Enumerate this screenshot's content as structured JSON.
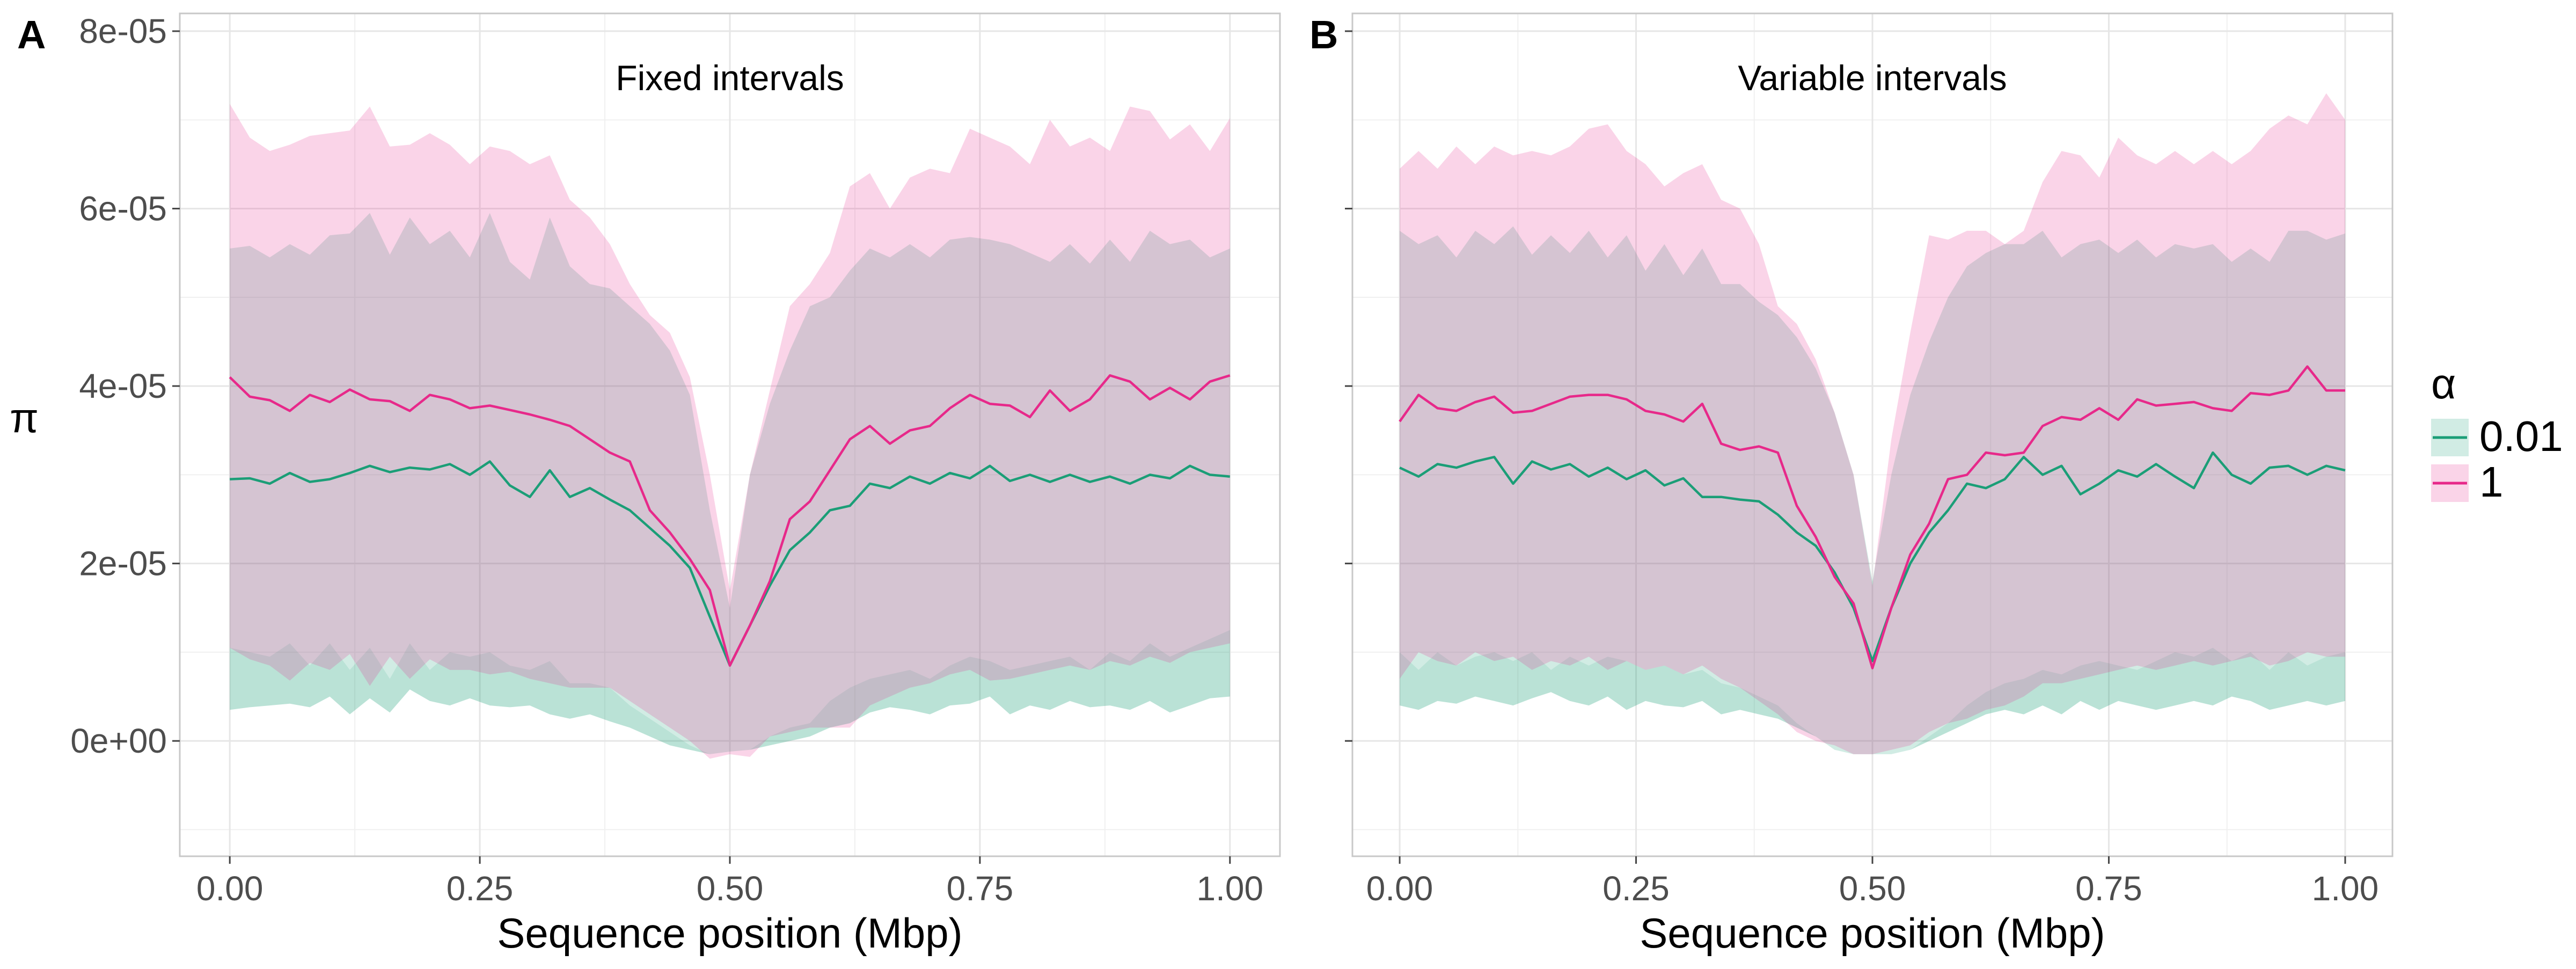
{
  "figure": {
    "ylabel": "π",
    "legend": {
      "title": "α",
      "position": "right",
      "entries": [
        {
          "label": "0.01",
          "line_color": "#1b9e77",
          "fill_color": "#1b9e77"
        },
        {
          "label": "1",
          "line_color": "#e7298a",
          "fill_color": "#e7298a"
        }
      ]
    },
    "y_ticks": [
      {
        "value": 8e-05,
        "label": "8e-05"
      },
      {
        "value": 6e-05,
        "label": "6e-05"
      },
      {
        "value": 4e-05,
        "label": "4e-05"
      },
      {
        "value": 2e-05,
        "label": "2e-05"
      },
      {
        "value": 0.0,
        "label": "0e+00"
      }
    ],
    "x_ticks": [
      {
        "value": 0.0,
        "label": "0.00"
      },
      {
        "value": 0.25,
        "label": "0.25"
      },
      {
        "value": 0.5,
        "label": "0.50"
      },
      {
        "value": 0.75,
        "label": "0.75"
      },
      {
        "value": 1.0,
        "label": "1.00"
      }
    ],
    "grid": true,
    "ribbon_opacity": 0.2
  },
  "chart_data": [
    {
      "type": "area",
      "panel_tag": "A",
      "title": "Fixed intervals",
      "xlabel": "Sequence position (Mbp)",
      "ylabel": "π",
      "xlim": [
        -0.05,
        1.05
      ],
      "ylim": [
        -1.3e-05,
        8.2e-05
      ],
      "x": [
        0.0,
        0.02,
        0.04,
        0.06,
        0.08,
        0.1,
        0.12,
        0.14,
        0.16,
        0.18,
        0.2,
        0.22,
        0.24,
        0.26,
        0.28,
        0.3,
        0.32,
        0.34,
        0.36,
        0.38,
        0.4,
        0.42,
        0.44,
        0.46,
        0.48,
        0.5,
        0.52,
        0.54,
        0.56,
        0.58,
        0.6,
        0.62,
        0.64,
        0.66,
        0.68,
        0.7,
        0.72,
        0.74,
        0.76,
        0.78,
        0.8,
        0.82,
        0.84,
        0.86,
        0.88,
        0.9,
        0.92,
        0.94,
        0.96,
        0.98,
        1.0
      ],
      "series": [
        {
          "name": "0.01",
          "color": "#1b9e77",
          "mean": [
            2.95e-05,
            2.96e-05,
            2.9e-05,
            3.02e-05,
            2.92e-05,
            2.95e-05,
            3.02e-05,
            3.1e-05,
            3.03e-05,
            3.08e-05,
            3.06e-05,
            3.12e-05,
            3e-05,
            3.15e-05,
            2.88e-05,
            2.75e-05,
            3.05e-05,
            2.75e-05,
            2.85e-05,
            2.72e-05,
            2.6e-05,
            2.4e-05,
            2.2e-05,
            1.95e-05,
            1.4e-05,
            8.5e-06,
            1.3e-05,
            1.75e-05,
            2.15e-05,
            2.35e-05,
            2.6e-05,
            2.65e-05,
            2.9e-05,
            2.85e-05,
            2.98e-05,
            2.9e-05,
            3.02e-05,
            2.96e-05,
            3.1e-05,
            2.93e-05,
            3e-05,
            2.92e-05,
            3e-05,
            2.92e-05,
            2.98e-05,
            2.9e-05,
            3e-05,
            2.96e-05,
            3.1e-05,
            3e-05,
            2.98e-05
          ],
          "upper": [
            5.55e-05,
            5.58e-05,
            5.45e-05,
            5.6e-05,
            5.48e-05,
            5.7e-05,
            5.72e-05,
            5.95e-05,
            5.48e-05,
            5.9e-05,
            5.6e-05,
            5.75e-05,
            5.45e-05,
            5.95e-05,
            5.4e-05,
            5.2e-05,
            5.9e-05,
            5.35e-05,
            5.15e-05,
            5.1e-05,
            4.9e-05,
            4.7e-05,
            4.4e-05,
            3.9e-05,
            2.6e-05,
            1.5e-05,
            3e-05,
            3.8e-05,
            4.4e-05,
            4.9e-05,
            5e-05,
            5.3e-05,
            5.55e-05,
            5.45e-05,
            5.6e-05,
            5.45e-05,
            5.65e-05,
            5.68e-05,
            5.65e-05,
            5.6e-05,
            5.5e-05,
            5.4e-05,
            5.6e-05,
            5.38e-05,
            5.65e-05,
            5.4e-05,
            5.75e-05,
            5.6e-05,
            5.65e-05,
            5.45e-05,
            5.55e-05
          ],
          "lower": [
            3.5e-06,
            3.8e-06,
            4e-06,
            4.2e-06,
            3.8e-06,
            5e-06,
            3e-06,
            4.8e-06,
            3.2e-06,
            5.8e-06,
            4.5e-06,
            4e-06,
            4.8e-06,
            4e-06,
            3.8e-06,
            4e-06,
            3e-06,
            2.5e-06,
            3e-06,
            2.2e-06,
            1.5e-06,
            5e-07,
            -5e-07,
            -1e-06,
            -1.5e-06,
            -1.2e-06,
            -1e-06,
            -5e-07,
            0.0,
            5e-07,
            1.5e-06,
            2e-06,
            3.2e-06,
            3.8e-06,
            3.5e-06,
            3e-06,
            4e-06,
            4.2e-06,
            5e-06,
            3e-06,
            4e-06,
            3.5e-06,
            4.5e-06,
            3.8e-06,
            4e-06,
            3.5e-06,
            4.5e-06,
            3.2e-06,
            4e-06,
            4.8e-06,
            5e-06
          ],
          "lower_outer": [
            1.05e-05,
            1e-05,
            9.5e-06,
            1.1e-05,
            8.5e-06,
            1.1e-05,
            8e-06,
            1.05e-05,
            7e-06,
            1.1e-05,
            8e-06,
            1e-05,
            9.5e-06,
            1e-05,
            8.5e-06,
            8e-06,
            9e-06,
            6.5e-06,
            6.5e-06,
            6e-06,
            4e-06,
            2.5e-06,
            1e-06,
            -5e-07,
            -1.5e-06,
            -1.2e-06,
            -1e-06,
            5e-07,
            1.5e-06,
            2e-06,
            4.5e-06,
            6e-06,
            7e-06,
            7.5e-06,
            8e-06,
            7e-06,
            8.5e-06,
            9.5e-06,
            9e-06,
            8e-06,
            8.5e-06,
            9e-06,
            9.5e-06,
            8e-06,
            1e-05,
            9e-06,
            1.1e-05,
            9.5e-06,
            1.05e-05,
            1.15e-05,
            1.25e-05
          ]
        },
        {
          "name": "1",
          "color": "#e7298a",
          "mean": [
            4.1e-05,
            3.88e-05,
            3.84e-05,
            3.72e-05,
            3.9e-05,
            3.82e-05,
            3.96e-05,
            3.85e-05,
            3.83e-05,
            3.72e-05,
            3.9e-05,
            3.85e-05,
            3.75e-05,
            3.78e-05,
            3.73e-05,
            3.68e-05,
            3.62e-05,
            3.55e-05,
            3.4e-05,
            3.25e-05,
            3.15e-05,
            2.6e-05,
            2.35e-05,
            2.05e-05,
            1.7e-05,
            8.5e-06,
            1.3e-05,
            1.8e-05,
            2.5e-05,
            2.7e-05,
            3.05e-05,
            3.4e-05,
            3.55e-05,
            3.35e-05,
            3.5e-05,
            3.55e-05,
            3.75e-05,
            3.9e-05,
            3.8e-05,
            3.78e-05,
            3.65e-05,
            3.95e-05,
            3.72e-05,
            3.85e-05,
            4.12e-05,
            4.05e-05,
            3.85e-05,
            3.98e-05,
            3.85e-05,
            4.05e-05,
            4.12e-05
          ],
          "upper": [
            7.18e-05,
            6.8e-05,
            6.65e-05,
            6.72e-05,
            6.82e-05,
            6.85e-05,
            6.88e-05,
            7.15e-05,
            6.7e-05,
            6.72e-05,
            6.85e-05,
            6.72e-05,
            6.5e-05,
            6.7e-05,
            6.65e-05,
            6.5e-05,
            6.6e-05,
            6.1e-05,
            5.9e-05,
            5.6e-05,
            5.15e-05,
            4.8e-05,
            4.6e-05,
            4.1e-05,
            3e-05,
            1.7e-05,
            3e-05,
            3.95e-05,
            4.9e-05,
            5.15e-05,
            5.5e-05,
            6.25e-05,
            6.4e-05,
            6e-05,
            6.35e-05,
            6.45e-05,
            6.4e-05,
            6.9e-05,
            6.8e-05,
            6.7e-05,
            6.5e-05,
            7e-05,
            6.7e-05,
            6.8e-05,
            6.65e-05,
            7.15e-05,
            7.1e-05,
            6.78e-05,
            6.95e-05,
            6.65e-05,
            7.02e-05
          ],
          "lower": [
            1.05e-05,
            9.2e-06,
            8.5e-06,
            6.8e-06,
            8.8e-06,
            8e-06,
            9.8e-06,
            6.2e-06,
            9.5e-06,
            7e-06,
            9.2e-06,
            8e-06,
            8e-06,
            7.5e-06,
            7.8e-06,
            7e-06,
            6.5e-06,
            6e-06,
            6e-06,
            6e-06,
            4.5e-06,
            3e-06,
            1.5e-06,
            0.0,
            -2e-06,
            -1.5e-06,
            -1.8e-06,
            5e-07,
            1e-06,
            1.5e-06,
            1.5e-06,
            1.5e-06,
            4e-06,
            5e-06,
            6e-06,
            6.5e-06,
            7.5e-06,
            8e-06,
            6.8e-06,
            7e-06,
            7.5e-06,
            8e-06,
            8.5e-06,
            8e-06,
            9e-06,
            8.5e-06,
            9.5e-06,
            8.8e-06,
            1e-05,
            1.05e-05,
            1.1e-05
          ]
        }
      ]
    },
    {
      "type": "area",
      "panel_tag": "B",
      "title": "Variable intervals",
      "xlabel": "Sequence position (Mbp)",
      "ylabel": "π",
      "xlim": [
        -0.05,
        1.05
      ],
      "ylim": [
        -1.3e-05,
        8.2e-05
      ],
      "x": [
        0.0,
        0.02,
        0.04,
        0.06,
        0.08,
        0.1,
        0.12,
        0.14,
        0.16,
        0.18,
        0.2,
        0.22,
        0.24,
        0.26,
        0.28,
        0.3,
        0.32,
        0.34,
        0.36,
        0.38,
        0.4,
        0.42,
        0.44,
        0.46,
        0.48,
        0.5,
        0.52,
        0.54,
        0.56,
        0.58,
        0.6,
        0.62,
        0.64,
        0.66,
        0.68,
        0.7,
        0.72,
        0.74,
        0.76,
        0.78,
        0.8,
        0.82,
        0.84,
        0.86,
        0.88,
        0.9,
        0.92,
        0.94,
        0.96,
        0.98,
        1.0
      ],
      "series": [
        {
          "name": "0.01",
          "color": "#1b9e77",
          "mean": [
            3.08e-05,
            2.98e-05,
            3.12e-05,
            3.08e-05,
            3.15e-05,
            3.2e-05,
            2.9e-05,
            3.15e-05,
            3.06e-05,
            3.12e-05,
            2.98e-05,
            3.08e-05,
            2.95e-05,
            3.05e-05,
            2.88e-05,
            2.96e-05,
            2.75e-05,
            2.75e-05,
            2.72e-05,
            2.7e-05,
            2.55e-05,
            2.35e-05,
            2.2e-05,
            1.9e-05,
            1.5e-05,
            9e-06,
            1.5e-05,
            2e-05,
            2.35e-05,
            2.6e-05,
            2.9e-05,
            2.85e-05,
            2.95e-05,
            3.2e-05,
            3e-05,
            3.1e-05,
            2.78e-05,
            2.9e-05,
            3.05e-05,
            2.98e-05,
            3.12e-05,
            2.98e-05,
            2.85e-05,
            3.25e-05,
            3e-05,
            2.9e-05,
            3.08e-05,
            3.1e-05,
            3e-05,
            3.1e-05,
            3.05e-05
          ],
          "upper": [
            5.75e-05,
            5.6e-05,
            5.7e-05,
            5.45e-05,
            5.75e-05,
            5.6e-05,
            5.8e-05,
            5.48e-05,
            5.7e-05,
            5.5e-05,
            5.75e-05,
            5.45e-05,
            5.7e-05,
            5.3e-05,
            5.6e-05,
            5.25e-05,
            5.55e-05,
            5.15e-05,
            5.15e-05,
            4.95e-05,
            4.8e-05,
            4.55e-05,
            4.2e-05,
            3.7e-05,
            3e-05,
            1.8e-05,
            3e-05,
            3.9e-05,
            4.5e-05,
            5e-05,
            5.35e-05,
            5.5e-05,
            5.6e-05,
            5.6e-05,
            5.75e-05,
            5.45e-05,
            5.6e-05,
            5.65e-05,
            5.5e-05,
            5.65e-05,
            5.45e-05,
            5.6e-05,
            5.55e-05,
            5.6e-05,
            5.4e-05,
            5.55e-05,
            5.4e-05,
            5.75e-05,
            5.75e-05,
            5.65e-05,
            5.72e-05
          ],
          "lower": [
            4e-06,
            3.5e-06,
            4.5e-06,
            4.2e-06,
            5e-06,
            4.5e-06,
            4e-06,
            4.8e-06,
            5.5e-06,
            4.5e-06,
            4e-06,
            5e-06,
            3.5e-06,
            4.5e-06,
            4e-06,
            3.8e-06,
            4.5e-06,
            3e-06,
            3.5e-06,
            3e-06,
            2.5e-06,
            1.5e-06,
            5e-07,
            -1e-06,
            -1.5e-06,
            -1.5e-06,
            -1.5e-06,
            -1e-06,
            0.0,
            1e-06,
            2e-06,
            3e-06,
            3.5e-06,
            3e-06,
            4e-06,
            3e-06,
            4.5e-06,
            3.5e-06,
            4.5e-06,
            4e-06,
            3.5e-06,
            4e-06,
            4.5e-06,
            4e-06,
            5e-06,
            4.5e-06,
            3.5e-06,
            4e-06,
            4.5e-06,
            4e-06,
            4.5e-06
          ],
          "lower_outer": [
            1e-05,
            8e-06,
            1e-05,
            8.5e-06,
            9.5e-06,
            1e-05,
            9e-06,
            1e-05,
            8e-06,
            9.5e-06,
            8.5e-06,
            9.5e-06,
            9e-06,
            8e-06,
            8.5e-06,
            7.5e-06,
            8e-06,
            6.5e-06,
            6e-06,
            5e-06,
            4e-06,
            2e-06,
            5e-07,
            -1e-06,
            -1.5e-06,
            -1.5e-06,
            -1.5e-06,
            -1e-06,
            5e-07,
            2e-06,
            4e-06,
            5.5e-06,
            6.5e-06,
            7e-06,
            8e-06,
            7.5e-06,
            8.5e-06,
            9e-06,
            8.5e-06,
            8e-06,
            9e-06,
            1e-05,
            9.5e-06,
            1.05e-05,
            9e-06,
            1e-05,
            8e-06,
            1e-05,
            8.5e-06,
            9.5e-06,
            1e-05
          ]
        },
        {
          "name": "1",
          "color": "#e7298a",
          "mean": [
            3.6e-05,
            3.9e-05,
            3.75e-05,
            3.72e-05,
            3.82e-05,
            3.88e-05,
            3.7e-05,
            3.72e-05,
            3.8e-05,
            3.88e-05,
            3.9e-05,
            3.9e-05,
            3.85e-05,
            3.72e-05,
            3.68e-05,
            3.6e-05,
            3.8e-05,
            3.35e-05,
            3.28e-05,
            3.32e-05,
            3.25e-05,
            2.65e-05,
            2.3e-05,
            1.85e-05,
            1.55e-05,
            8.2e-06,
            1.5e-05,
            2.1e-05,
            2.45e-05,
            2.95e-05,
            3e-05,
            3.25e-05,
            3.22e-05,
            3.25e-05,
            3.55e-05,
            3.65e-05,
            3.62e-05,
            3.75e-05,
            3.62e-05,
            3.85e-05,
            3.78e-05,
            3.8e-05,
            3.82e-05,
            3.75e-05,
            3.72e-05,
            3.92e-05,
            3.9e-05,
            3.95e-05,
            4.22e-05,
            3.95e-05,
            3.95e-05
          ],
          "upper": [
            6.45e-05,
            6.65e-05,
            6.45e-05,
            6.7e-05,
            6.5e-05,
            6.7e-05,
            6.6e-05,
            6.65e-05,
            6.6e-05,
            6.7e-05,
            6.9e-05,
            6.95e-05,
            6.65e-05,
            6.5e-05,
            6.25e-05,
            6.4e-05,
            6.5e-05,
            6.1e-05,
            6e-05,
            5.6e-05,
            4.9e-05,
            4.7e-05,
            4.3e-05,
            3.7e-05,
            3e-05,
            1.75e-05,
            3.4e-05,
            4.6e-05,
            5.7e-05,
            5.65e-05,
            5.75e-05,
            5.75e-05,
            5.6e-05,
            5.75e-05,
            6.3e-05,
            6.65e-05,
            6.6e-05,
            6.35e-05,
            6.8e-05,
            6.6e-05,
            6.5e-05,
            6.65e-05,
            6.5e-05,
            6.65e-05,
            6.5e-05,
            6.65e-05,
            6.9e-05,
            7.05e-05,
            6.95e-05,
            7.3e-05,
            7e-05
          ],
          "lower": [
            7e-06,
            1e-05,
            9e-06,
            8.5e-06,
            1e-05,
            9e-06,
            9.5e-06,
            8e-06,
            9e-06,
            8.5e-06,
            9.5e-06,
            8e-06,
            9e-06,
            8e-06,
            8.5e-06,
            7.5e-06,
            8.5e-06,
            7e-06,
            6e-06,
            4.5e-06,
            3e-06,
            1e-06,
            0.0,
            -5e-07,
            -1.5e-06,
            -1.5e-06,
            -1e-06,
            -5e-07,
            1e-06,
            2e-06,
            2.5e-06,
            3.5e-06,
            4e-06,
            5e-06,
            6.5e-06,
            6.5e-06,
            7e-06,
            7.5e-06,
            8e-06,
            8.5e-06,
            8e-06,
            8.5e-06,
            9e-06,
            8.5e-06,
            9e-06,
            9.5e-06,
            8.5e-06,
            9e-06,
            1e-05,
            9.5e-06,
            9.5e-06
          ]
        }
      ]
    }
  ]
}
